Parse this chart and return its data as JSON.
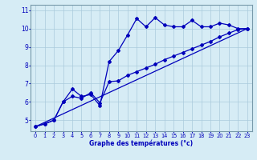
{
  "xlabel": "Graphe des températures (°c)",
  "ylabel": "",
  "xlim": [
    -0.5,
    23.5
  ],
  "ylim": [
    4.4,
    11.3
  ],
  "yticks": [
    5,
    6,
    7,
    8,
    9,
    10,
    11
  ],
  "xticks": [
    0,
    1,
    2,
    3,
    4,
    5,
    6,
    7,
    8,
    9,
    10,
    11,
    12,
    13,
    14,
    15,
    16,
    17,
    18,
    19,
    20,
    21,
    22,
    23
  ],
  "bg_color": "#d6ecf5",
  "line_color": "#0000bb",
  "grid_color": "#aacadc",
  "line1_x": [
    0,
    1,
    2,
    3,
    4,
    5,
    6,
    7,
    8,
    9,
    10,
    11,
    12,
    13,
    14,
    15,
    16,
    17,
    18,
    19,
    20,
    21,
    22,
    23
  ],
  "line1_y": [
    4.65,
    4.8,
    5.0,
    6.0,
    6.7,
    6.3,
    6.4,
    5.8,
    8.2,
    8.8,
    9.65,
    10.55,
    10.1,
    10.6,
    10.2,
    10.1,
    10.1,
    10.45,
    10.1,
    10.1,
    10.3,
    10.2,
    10.0,
    10.0
  ],
  "line2_x": [
    0,
    1,
    2,
    3,
    4,
    5,
    6,
    7,
    8,
    9,
    10,
    11,
    12,
    13,
    14,
    15,
    16,
    17,
    18,
    19,
    20,
    21,
    22,
    23
  ],
  "line2_y": [
    4.65,
    4.8,
    5.0,
    6.0,
    6.3,
    6.2,
    6.5,
    5.95,
    7.1,
    7.15,
    7.45,
    7.65,
    7.85,
    8.05,
    8.3,
    8.5,
    8.7,
    8.9,
    9.1,
    9.3,
    9.55,
    9.75,
    9.95,
    10.0
  ],
  "line3_x": [
    0,
    23
  ],
  "line3_y": [
    4.65,
    10.0
  ]
}
